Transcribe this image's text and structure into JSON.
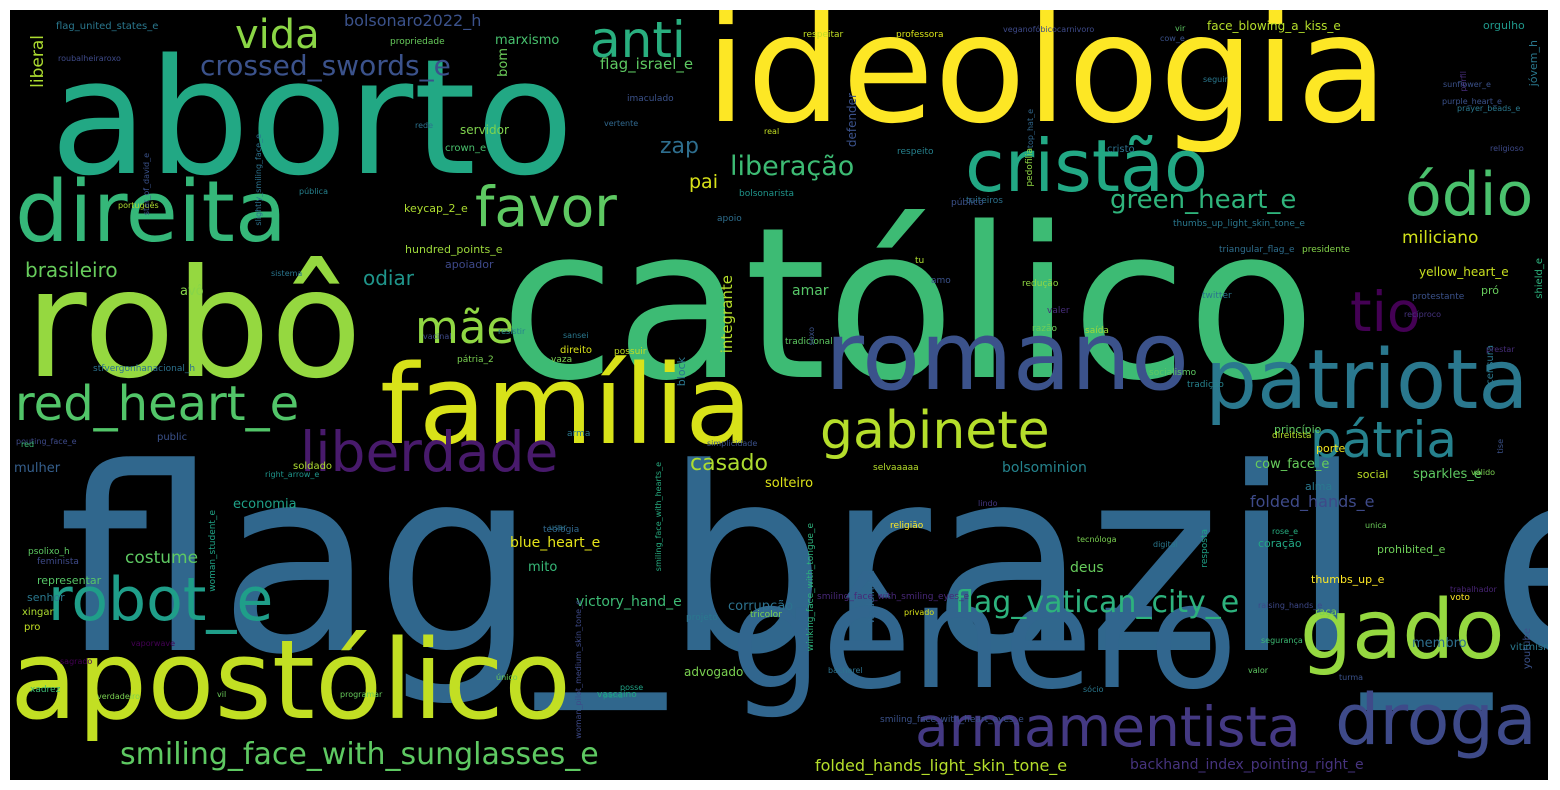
{
  "words": [
    {
      "text": "flag_brazil_e",
      "color": "#30678d"
    },
    {
      "text": "católico",
      "color": "#3dbb74"
    },
    {
      "text": "ideologia",
      "color": "#fde725"
    },
    {
      "text": "aborto",
      "color": "#22a884"
    },
    {
      "text": "robô",
      "color": "#95d840"
    },
    {
      "text": "gênero",
      "color": "#31668e"
    },
    {
      "text": "apostólico",
      "color": "#c2df23"
    },
    {
      "text": "família",
      "color": "#d8e219"
    },
    {
      "text": "romano",
      "color": "#3b528b"
    },
    {
      "text": "direita",
      "color": "#35b779"
    },
    {
      "text": "patriota",
      "color": "#2a788e"
    },
    {
      "text": "gado",
      "color": "#95d840"
    },
    {
      "text": "droga",
      "color": "#3e4a89"
    },
    {
      "text": "cristão",
      "color": "#22a884"
    },
    {
      "text": "ódio",
      "color": "#4ac16d"
    },
    {
      "text": "armamentista",
      "color": "#443983"
    },
    {
      "text": "red_heart_e",
      "color": "#52c569"
    },
    {
      "text": "favor",
      "color": "#5ec962"
    },
    {
      "text": "gabinete",
      "color": "#b5de2b"
    },
    {
      "text": "pátria",
      "color": "#26828e"
    },
    {
      "text": "robot_e",
      "color": "#1f9e89"
    },
    {
      "text": "liberdade",
      "color": "#481a6c"
    },
    {
      "text": "tio",
      "color": "#440154"
    },
    {
      "text": "anti",
      "color": "#29af7f"
    },
    {
      "text": "mãe",
      "color": "#90d743"
    },
    {
      "text": "vida",
      "color": "#8bd646"
    },
    {
      "text": "smiling_face_with_sunglasses_e",
      "color": "#5ec962"
    },
    {
      "text": "flag_vatican_city_e",
      "color": "#2db27d"
    },
    {
      "text": "liberação",
      "color": "#3dbb74"
    },
    {
      "text": "green_heart_e",
      "color": "#2fb47c"
    },
    {
      "text": "crossed_swords_e",
      "color": "#3b528b"
    },
    {
      "text": "casado",
      "color": "#addc30"
    },
    {
      "text": "zap",
      "color": "#2e6e8e"
    },
    {
      "text": "brasileiro",
      "color": "#67cc5c"
    },
    {
      "text": "odiar",
      "color": "#1f958b"
    },
    {
      "text": "costume",
      "color": "#5ec962"
    },
    {
      "text": "miliciano",
      "color": "#d2e21b"
    },
    {
      "text": "pai",
      "color": "#d8e219"
    },
    {
      "text": "folded_hands_light_skin_tone_e",
      "color": "#b5de2b"
    },
    {
      "text": "backhand_index_pointing_right_e",
      "color": "#46337e"
    },
    {
      "text": "liberal",
      "color": "#addc30"
    },
    {
      "text": "bolsominion",
      "color": "#25848e"
    },
    {
      "text": "folded_hands_e",
      "color": "#3e4a89"
    },
    {
      "text": "integrante",
      "color": "#b5de2b"
    },
    {
      "text": "blue_heart_e",
      "color": "#e5e419"
    },
    {
      "text": "deus",
      "color": "#67cc5c"
    },
    {
      "text": "bolsonaro2022_h",
      "color": "#3b528b"
    },
    {
      "text": "flag_israel_e",
      "color": "#5ec962"
    },
    {
      "text": "marxismo",
      "color": "#48c16e"
    },
    {
      "text": "bom",
      "color": "#6ccd5a"
    },
    {
      "text": "mulher",
      "color": "#355f8d"
    },
    {
      "text": "economia",
      "color": "#1fa187"
    },
    {
      "text": "victory_hand_e",
      "color": "#3dbb74"
    },
    {
      "text": "corrupção",
      "color": "#2c728e"
    },
    {
      "text": "advogado",
      "color": "#7ad151"
    },
    {
      "text": "amar",
      "color": "#56c667"
    },
    {
      "text": "membro",
      "color": "#2e6f8e"
    },
    {
      "text": "sparkles_e",
      "color": "#5ec962"
    },
    {
      "text": "yellow_heart_e",
      "color": "#c8e020"
    },
    {
      "text": "mito",
      "color": "#37b878"
    },
    {
      "text": "cow_face_e",
      "color": "#67cc5c"
    },
    {
      "text": "avô",
      "color": "#87d549"
    },
    {
      "text": "keycap_2_e",
      "color": "#addc30"
    },
    {
      "text": "hundred_points_e",
      "color": "#9dd93b"
    },
    {
      "text": "face_blowing_a_kiss_e",
      "color": "#b5de2b"
    },
    {
      "text": "servidor",
      "color": "#7fd34e"
    },
    {
      "text": "apoiador",
      "color": "#3e4989"
    },
    {
      "text": "solteiro",
      "color": "#dde318"
    },
    {
      "text": "social",
      "color": "#bddf26"
    },
    {
      "text": "alma",
      "color": "#2a788e"
    },
    {
      "text": "thumbs_up_e",
      "color": "#fde725"
    },
    {
      "text": "prohibited_e",
      "color": "#6ece58"
    },
    {
      "text": "coração",
      "color": "#22a884"
    },
    {
      "text": "porte",
      "color": "#f1e51d"
    },
    {
      "text": "princípio",
      "color": "#5ec962"
    },
    {
      "text": "defender",
      "color": "#3b528b"
    },
    {
      "text": "orgulho",
      "color": "#1f988b"
    },
    {
      "text": "respeitar",
      "color": "#c2df23"
    },
    {
      "text": "professora",
      "color": "#d8e219"
    },
    {
      "text": "crown_e",
      "color": "#4ac16d"
    },
    {
      "text": "cristo",
      "color": "#2c728e"
    },
    {
      "text": "imaculado",
      "color": "#3b528b"
    },
    {
      "text": "flag_united_states_e",
      "color": "#2a788e"
    },
    {
      "text": "propriedade",
      "color": "#67cc5c"
    },
    {
      "text": "veganofóbicocarnivoro",
      "color": "#3e4a89"
    },
    {
      "text": "respeito",
      "color": "#26828e"
    },
    {
      "text": "bolsonarista",
      "color": "#1f958b"
    },
    {
      "text": "apoio",
      "color": "#2e6e8e"
    },
    {
      "text": "pedofilia",
      "color": "#8fd744"
    },
    {
      "text": "tuiteiros",
      "color": "#2c718e"
    },
    {
      "text": "thumbs_up_light_skin_tone_e",
      "color": "#2a788e"
    },
    {
      "text": "triangular_flag_e",
      "color": "#2e6e8e"
    },
    {
      "text": "presidente",
      "color": "#84d44b"
    },
    {
      "text": "protestante",
      "color": "#3b528b"
    },
    {
      "text": "recíproco",
      "color": "#46337e"
    },
    {
      "text": "shield_e",
      "color": "#2db27d"
    },
    {
      "text": "censura",
      "color": "#2a788e"
    },
    {
      "text": "pró",
      "color": "#67cc5c"
    },
    {
      "text": "twitter",
      "color": "#2a768e"
    },
    {
      "text": "redução",
      "color": "#90d743"
    },
    {
      "text": "valer",
      "color": "#472d7b"
    },
    {
      "text": "razão",
      "color": "#6ece58"
    },
    {
      "text": "saída",
      "color": "#9fda3a"
    },
    {
      "text": "socialismo",
      "color": "#5ec962"
    },
    {
      "text": "tradição",
      "color": "#26828e"
    },
    {
      "text": "selvaaaaa",
      "color": "#b5de2b"
    },
    {
      "text": "lindo",
      "color": "#453781"
    },
    {
      "text": "religião",
      "color": "#fde725"
    },
    {
      "text": "wedding_e",
      "color": "#31688e"
    },
    {
      "text": "resposta",
      "color": "#1fa188"
    },
    {
      "text": "rose_e",
      "color": "#27ad81"
    },
    {
      "text": "unica",
      "color": "#6ccd5a"
    },
    {
      "text": "tecnóloga",
      "color": "#7ad151"
    },
    {
      "text": "digital",
      "color": "#2a788e"
    },
    {
      "text": "direitista",
      "color": "#b5de2b"
    },
    {
      "text": "direito",
      "color": "#d8e219"
    },
    {
      "text": "arma",
      "color": "#2a788e"
    },
    {
      "text": "block",
      "color": "#2a768e"
    },
    {
      "text": "public",
      "color": "#3b528b"
    },
    {
      "text": "soldado",
      "color": "#addc30"
    },
    {
      "text": "possuir",
      "color": "#c2df23"
    },
    {
      "text": "tradicional",
      "color": "#5ec962"
    },
    {
      "text": "pátria_2",
      "color": "#7ad151"
    },
    {
      "text": "vaza",
      "color": "#7ad151"
    },
    {
      "text": "psolixo_h",
      "color": "#5ec962"
    },
    {
      "text": "feminista",
      "color": "#3e4a89"
    },
    {
      "text": "representar",
      "color": "#56c667"
    },
    {
      "text": "senhor",
      "color": "#2a788e"
    },
    {
      "text": "xingar",
      "color": "#addc30"
    },
    {
      "text": "pro",
      "color": "#c2df23"
    },
    {
      "text": "xadrez",
      "color": "#3dbb74"
    },
    {
      "text": "verdadeiro",
      "color": "#7ad151"
    },
    {
      "text": "vil",
      "color": "#6ccd5a"
    },
    {
      "text": "programar",
      "color": "#67cc5c"
    },
    {
      "text": "vascaíno",
      "color": "#22a884"
    },
    {
      "text": "bacharel",
      "color": "#2c728e"
    },
    {
      "text": "youtube",
      "color": "#3b528b"
    },
    {
      "text": "trabalhador",
      "color": "#482475"
    },
    {
      "text": "voto",
      "color": "#fde725"
    },
    {
      "text": "vitimismo",
      "color": "#2a788e"
    },
    {
      "text": "raça",
      "color": "#7ad151"
    },
    {
      "text": "turma",
      "color": "#3b528b"
    },
    {
      "text": "valor",
      "color": "#5ec962"
    },
    {
      "text": "segurança",
      "color": "#3dbb74"
    },
    {
      "text": "sócio",
      "color": "#2a788e"
    },
    {
      "text": "único",
      "color": "#6ccd5a"
    },
    {
      "text": "posse",
      "color": "#20a386"
    },
    {
      "text": "pena",
      "color": "#1f958b"
    },
    {
      "text": "tricolor",
      "color": "#7ad151"
    },
    {
      "text": "projeto",
      "color": "#2a788e"
    },
    {
      "text": "privado",
      "color": "#d8e219"
    },
    {
      "text": "smiling_face_with_smiling_eyes_e",
      "color": "#482878"
    },
    {
      "text": "smiling_face_with_heart_eyes_e",
      "color": "#3b528b"
    },
    {
      "text": "vaporwave",
      "color": "#440154"
    },
    {
      "text": "raising_hands_e",
      "color": "#3e4989"
    },
    {
      "text": "woman_student_e",
      "color": "#20a386"
    },
    {
      "text": "simplicidade",
      "color": "#3b528b"
    },
    {
      "text": "usar",
      "color": "#2a788e"
    },
    {
      "text": "teologia",
      "color": "#31688e"
    },
    {
      "text": "woman_pilot_medium_skin_tone_e",
      "color": "#3e4a89"
    },
    {
      "text": "smiling_face_with_hearts_e",
      "color": "#27ad81"
    },
    {
      "text": "winking_face_with_tongue_e",
      "color": "#2db27d"
    },
    {
      "text": "sexo",
      "color": "#3b528b"
    },
    {
      "text": "resistir",
      "color": "#26828e"
    },
    {
      "text": "sansei",
      "color": "#2a788e"
    },
    {
      "text": "vacinal",
      "color": "#3e4a89"
    },
    {
      "text": "sistema",
      "color": "#2a768e"
    },
    {
      "text": "amo",
      "color": "#3b528b"
    },
    {
      "text": "tu",
      "color": "#addc30"
    },
    {
      "text": "público",
      "color": "#3b528b"
    },
    {
      "text": "right_arrow_e",
      "color": "#1f958b"
    },
    {
      "text": "pouting_face_e",
      "color": "#3e4a89"
    },
    {
      "text": "red",
      "color": "#3dbb74"
    },
    {
      "text": "sagrado",
      "color": "#440154"
    },
    {
      "text": "stfvergonhanacional_h",
      "color": "#2c728e"
    },
    {
      "text": "português",
      "color": "#addc30"
    },
    {
      "text": "star_of_david_e",
      "color": "#3b528b"
    },
    {
      "text": "slightly_smiling_face_e",
      "color": "#2c728e"
    },
    {
      "text": "pública",
      "color": "#26828e"
    },
    {
      "text": "vertente",
      "color": "#31688e"
    },
    {
      "text": "roubalheiraroxo",
      "color": "#3e4a89"
    },
    {
      "text": "rede",
      "color": "#2c728e"
    },
    {
      "text": "real",
      "color": "#c2df23"
    },
    {
      "text": "top_hat_e",
      "color": "#31688e"
    },
    {
      "text": "cow_e",
      "color": "#3b528b"
    },
    {
      "text": "vir",
      "color": "#5ec962"
    },
    {
      "text": "seguir",
      "color": "#2a788e"
    },
    {
      "text": "purple_heart_e",
      "color": "#3b528b"
    },
    {
      "text": "perfil",
      "color": "#472d7b"
    },
    {
      "text": "jóvem_h",
      "color": "#2a788e"
    },
    {
      "text": "sunflower_e",
      "color": "#3b528b"
    },
    {
      "text": "prayer_beads_e",
      "color": "#2a788e"
    },
    {
      "text": "religioso",
      "color": "#3e4a89"
    },
    {
      "text": "prestar",
      "color": "#472d7b"
    },
    {
      "text": "tise",
      "color": "#3b528b"
    },
    {
      "text": "válido",
      "color": "#7ad151"
    }
  ]
}
